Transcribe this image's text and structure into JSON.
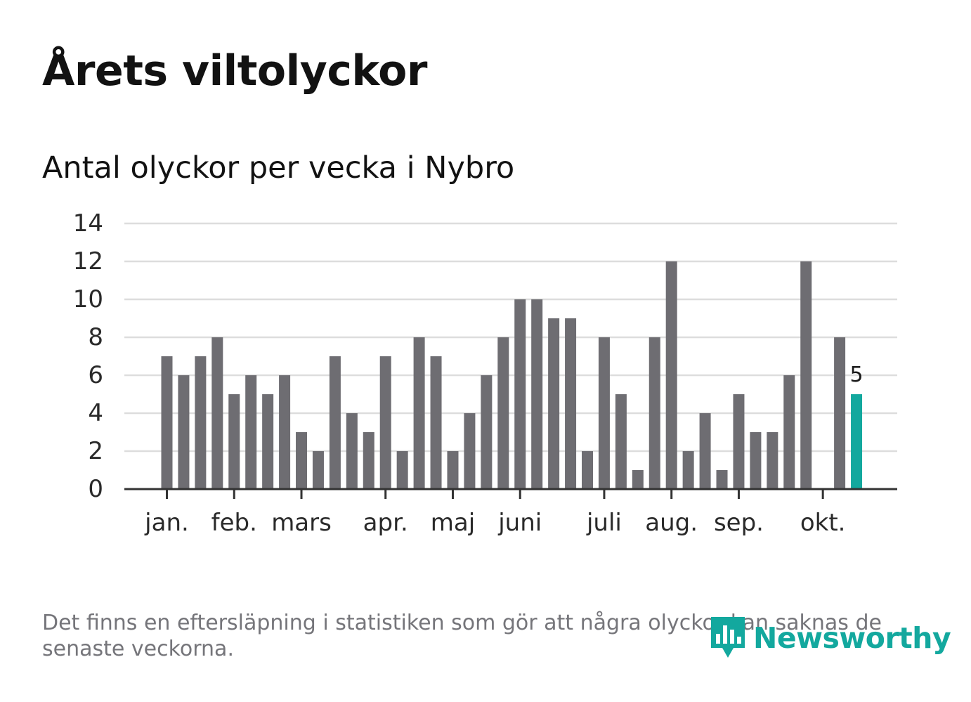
{
  "title": "Årets viltolyckor",
  "footnote": "Det finns en eftersläpning i statistiken som gör att några olyckor kan saknas de senaste veckorna.",
  "brand": {
    "name": "Newsworthy",
    "icon": "newsworthy-logo-icon",
    "color": "#13a89e"
  },
  "colors": {
    "bar": "#6e6d72",
    "highlight": "#13a89e",
    "grid": "#dddddd",
    "axis": "#333333"
  },
  "chart_data": {
    "type": "bar",
    "title": "Antal olyckor per vecka i Nybro",
    "xlabel": "",
    "ylabel": "",
    "ylim": [
      0,
      14
    ],
    "yticks": [
      0,
      2,
      4,
      6,
      8,
      10,
      12,
      14
    ],
    "grid": true,
    "weeks": [
      1,
      2,
      3,
      4,
      5,
      6,
      7,
      8,
      9,
      10,
      11,
      12,
      13,
      14,
      15,
      16,
      17,
      18,
      19,
      20,
      21,
      22,
      23,
      24,
      25,
      26,
      27,
      28,
      29,
      30,
      31,
      32,
      33,
      34,
      35,
      36,
      37,
      38,
      39,
      40,
      41,
      42
    ],
    "values": [
      7,
      6,
      7,
      8,
      5,
      6,
      5,
      6,
      3,
      2,
      7,
      4,
      3,
      7,
      2,
      8,
      7,
      2,
      4,
      6,
      8,
      10,
      10,
      9,
      9,
      2,
      8,
      5,
      1,
      8,
      12,
      2,
      4,
      1,
      5,
      3,
      3,
      6,
      12,
      0,
      8,
      5
    ],
    "highlight_index": 41,
    "highlight_label": "5",
    "month_ticks": [
      {
        "label": "jan.",
        "week": 1
      },
      {
        "label": "feb.",
        "week": 5
      },
      {
        "label": "mars",
        "week": 9
      },
      {
        "label": "apr.",
        "week": 14
      },
      {
        "label": "maj",
        "week": 18
      },
      {
        "label": "juni",
        "week": 22
      },
      {
        "label": "juli",
        "week": 27
      },
      {
        "label": "aug.",
        "week": 31
      },
      {
        "label": "sep.",
        "week": 35
      },
      {
        "label": "okt.",
        "week": 40
      }
    ]
  }
}
